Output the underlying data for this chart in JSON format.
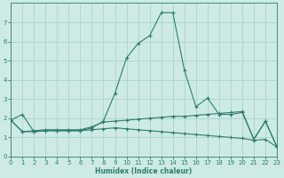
{
  "xlabel": "Humidex (Indice chaleur)",
  "x": [
    0,
    1,
    2,
    3,
    4,
    5,
    6,
    7,
    8,
    9,
    10,
    11,
    12,
    13,
    14,
    15,
    16,
    17,
    18,
    19,
    20,
    21,
    22,
    23
  ],
  "line1": [
    1.9,
    2.2,
    1.3,
    1.35,
    1.35,
    1.35,
    1.35,
    1.5,
    1.85,
    3.3,
    5.15,
    5.9,
    6.3,
    7.5,
    7.5,
    4.5,
    2.6,
    3.05,
    2.2,
    2.2,
    2.3,
    0.9,
    1.85,
    0.5
  ],
  "line2": [
    1.9,
    1.3,
    1.35,
    1.4,
    1.4,
    1.4,
    1.4,
    1.55,
    1.8,
    1.85,
    1.9,
    1.95,
    2.0,
    2.05,
    2.1,
    2.1,
    2.15,
    2.2,
    2.25,
    2.3,
    2.35,
    0.9,
    1.85,
    0.5
  ],
  "line3": [
    1.9,
    1.3,
    1.3,
    1.35,
    1.35,
    1.35,
    1.35,
    1.4,
    1.45,
    1.5,
    1.45,
    1.4,
    1.35,
    1.3,
    1.25,
    1.2,
    1.15,
    1.1,
    1.05,
    1.0,
    0.95,
    0.85,
    0.9,
    0.5
  ],
  "color": "#2d7d6e",
  "bg_color": "#ceeae5",
  "grid_color": "#aad4ce",
  "ylim": [
    0,
    8
  ],
  "xlim": [
    0,
    23
  ],
  "yticks": [
    0,
    1,
    2,
    3,
    4,
    5,
    6,
    7
  ],
  "xticks": [
    0,
    1,
    2,
    3,
    4,
    5,
    6,
    7,
    8,
    9,
    10,
    11,
    12,
    13,
    14,
    15,
    16,
    17,
    18,
    19,
    20,
    21,
    22,
    23
  ]
}
